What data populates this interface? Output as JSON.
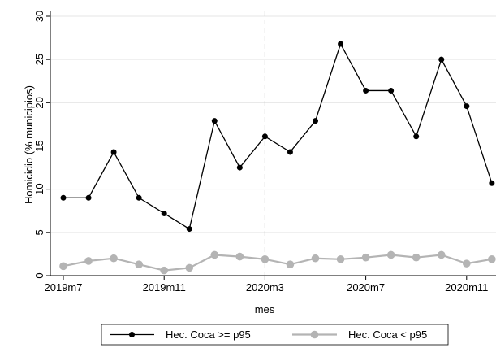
{
  "chart_data": {
    "type": "line",
    "xlabel": "mes",
    "ylabel": "Homicidio (% municipios)",
    "ylim": [
      0,
      30
    ],
    "yticks": [
      0,
      5,
      10,
      15,
      20,
      25,
      30
    ],
    "xticks": [
      {
        "label": "2019m7",
        "index": 0
      },
      {
        "label": "2019m11",
        "index": 4
      },
      {
        "label": "2020m3",
        "index": 8
      },
      {
        "label": "2020m7",
        "index": 12
      },
      {
        "label": "2020m11",
        "index": 16
      }
    ],
    "x": [
      "2019m7",
      "2019m8",
      "2019m9",
      "2019m10",
      "2019m11",
      "2019m12",
      "2020m1",
      "2020m2",
      "2020m3",
      "2020m4",
      "2020m5",
      "2020m6",
      "2020m7",
      "2020m8",
      "2020m9",
      "2020m10",
      "2020m11",
      "2020m12"
    ],
    "reference_line": {
      "x": "2020m3",
      "style": "dashed"
    },
    "grid": "horizontal",
    "legend_position": "bottom",
    "series": [
      {
        "name": "Hec. Coca >= p95",
        "color": "#000000",
        "values": [
          9.0,
          9.0,
          14.3,
          9.0,
          7.2,
          5.4,
          17.9,
          12.5,
          16.1,
          14.3,
          17.9,
          26.8,
          21.4,
          21.4,
          16.1,
          25.0,
          19.6,
          10.7
        ]
      },
      {
        "name": "Hec. Coca < p95",
        "color": "#b4b4b4",
        "values": [
          1.1,
          1.7,
          2.0,
          1.3,
          0.6,
          0.9,
          2.4,
          2.2,
          1.9,
          1.3,
          2.0,
          1.9,
          2.1,
          2.4,
          2.1,
          2.4,
          1.4,
          1.9
        ]
      }
    ]
  }
}
